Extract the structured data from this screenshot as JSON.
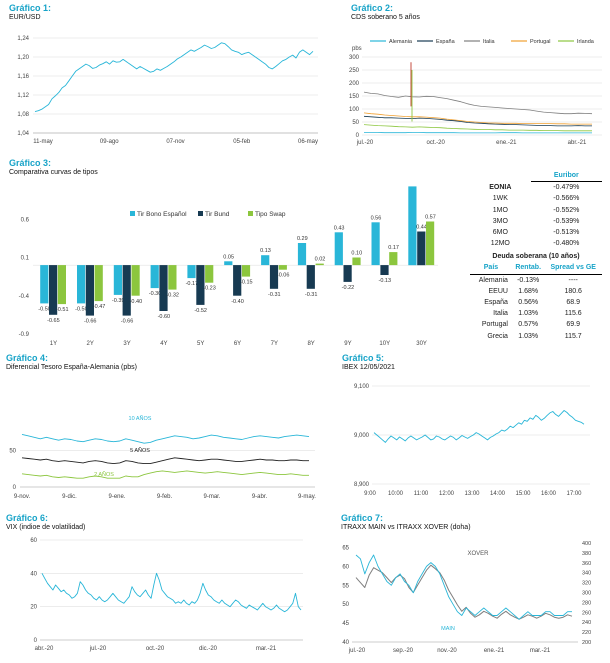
{
  "panels": {
    "g1": {
      "title": "Gráfico 1:",
      "subtitle": "EUR/USD"
    },
    "g2": {
      "title": "Gráfico 2:",
      "subtitle": "CDS soberano 5 años"
    },
    "g3": {
      "title": "Gráfico 3:",
      "subtitle": "Comparativa curvas de tipos"
    },
    "g4": {
      "title": "Gráfico 4:",
      "subtitle": "Diferencial Tesoro España-Alemania (pbs)"
    },
    "g5": {
      "title": "Gráfico 5:",
      "subtitle": "IBEX 12/05/2021"
    },
    "g6": {
      "title": "Gráfico 6:",
      "subtitle": "VIX (indioe de volatilidad)"
    },
    "g7": {
      "title": "Gráfico 7:",
      "subtitle": "ITRAXX MAIN vs ITRAXX XOVER (doha)"
    }
  },
  "colors": {
    "cyan": "#29b6d8",
    "navy": "#173a52",
    "green": "#8cc63e",
    "orange": "#f0a030",
    "gray": "#7f7f7f",
    "title": "#17a3c8",
    "grid": "#d9d9d9",
    "italy_red": "#c0392b"
  },
  "chart_data": [
    {
      "id": "g1",
      "type": "line",
      "x_ticks": [
        "11-may",
        "09-ago",
        "07-nov",
        "05-feb",
        "06-may"
      ],
      "y_ticks": [
        "1,04",
        "1,08",
        "1,12",
        "1,16",
        "1,20",
        "1,24"
      ],
      "ylim": [
        1.04,
        1.24
      ],
      "series": [
        {
          "values": [
            1.085,
            1.087,
            1.09,
            1.095,
            1.1,
            1.112,
            1.118,
            1.125,
            1.135,
            1.14,
            1.15,
            1.16,
            1.17,
            1.175,
            1.18,
            1.185,
            1.182,
            1.176,
            1.178,
            1.183,
            1.186,
            1.19,
            1.185,
            1.192,
            1.189,
            1.19,
            1.195,
            1.19,
            1.185,
            1.18,
            1.175,
            1.18,
            1.176,
            1.172,
            1.168,
            1.17,
            1.175,
            1.172,
            1.176,
            1.18,
            1.185,
            1.19,
            1.196,
            1.2,
            1.205,
            1.21,
            1.215,
            1.212,
            1.216,
            1.22,
            1.225,
            1.222,
            1.218,
            1.22,
            1.225,
            1.23,
            1.228,
            1.222,
            1.215,
            1.212,
            1.21,
            1.205,
            1.208,
            1.21,
            1.205,
            1.2,
            1.195,
            1.19,
            1.185,
            1.178,
            1.175,
            1.18,
            1.186,
            1.192,
            1.195,
            1.2,
            1.204,
            1.198,
            1.21,
            1.215,
            1.21,
            1.205,
            1.212
          ]
        }
      ]
    },
    {
      "id": "g2",
      "type": "line",
      "y_label": "pbs",
      "y_ticks": [
        "0",
        "50",
        "100",
        "150",
        "200",
        "250",
        "300"
      ],
      "ylim": [
        0,
        300
      ],
      "x_ticks": [
        "jul.-20",
        "oct.-20",
        "ene.-21",
        "abr.-21"
      ],
      "legend": [
        "Alemania",
        "España",
        "Italia",
        "Portugal",
        "Irlanda"
      ],
      "series": [
        {
          "name": "Alemania",
          "values": [
            10,
            10,
            10,
            9,
            9,
            9,
            9,
            10,
            10,
            9,
            9,
            9,
            9,
            9,
            8,
            8,
            8,
            8,
            8,
            8,
            9,
            9,
            9,
            8,
            8,
            8,
            8,
            8,
            8,
            8,
            8,
            8,
            8,
            8
          ]
        },
        {
          "name": "España",
          "values": [
            72,
            70,
            68,
            66,
            66,
            65,
            64,
            63,
            65,
            64,
            62,
            60,
            57,
            55,
            52,
            48,
            46,
            45,
            43,
            42,
            41,
            40,
            40,
            39,
            38,
            37,
            37,
            36,
            35,
            35,
            35,
            36,
            35,
            35
          ]
        },
        {
          "name": "Italia",
          "values": [
            165,
            160,
            158,
            152,
            148,
            145,
            150,
            147,
            146,
            149,
            148,
            144,
            140,
            134,
            128,
            120,
            114,
            110,
            108,
            106,
            104,
            102,
            100,
            98,
            96,
            92,
            88,
            86,
            84,
            82,
            82,
            84,
            83,
            82
          ]
        },
        {
          "name": "Portugal",
          "values": [
            85,
            82,
            80,
            77,
            75,
            73,
            71,
            70,
            70,
            69,
            67,
            65,
            61,
            58,
            55,
            52,
            50,
            48,
            46,
            46,
            45,
            45,
            45,
            44,
            44,
            44,
            44,
            44,
            43,
            43,
            42,
            42,
            42,
            42
          ]
        },
        {
          "name": "Irlanda",
          "values": [
            40,
            38,
            36,
            35,
            34,
            32,
            31,
            30,
            31,
            30,
            29,
            28,
            26,
            25,
            24,
            23,
            22,
            21,
            21,
            20,
            20,
            19,
            19,
            19,
            18,
            18,
            17,
            17,
            17,
            16,
            16,
            16,
            16,
            16
          ]
        }
      ]
    },
    {
      "id": "g3",
      "type": "bar",
      "categories": [
        "1Y",
        "2Y",
        "3Y",
        "4Y",
        "5Y",
        "6Y",
        "7Y",
        "8Y",
        "9Y",
        "10Y",
        "30Y"
      ],
      "y_ticks": [
        "-0.9",
        "-0.4",
        "0.1",
        "0.6"
      ],
      "ylim": [
        -0.9,
        1.1
      ],
      "series": [
        {
          "name": "Tir Bono Español",
          "values": [
            -0.5,
            -0.5,
            -0.39,
            -0.3,
            -0.17,
            0.05,
            0.13,
            0.29,
            0.43,
            0.56,
            1.03
          ],
          "labels": [
            "-0.50",
            "-0.50",
            "-0.39",
            "-0.30",
            "-0.17",
            "0.05",
            "0.13",
            "0.29",
            "0.43",
            "0.56",
            ""
          ]
        },
        {
          "name": "Tir Bund",
          "values": [
            -0.65,
            -0.66,
            -0.66,
            -0.6,
            -0.52,
            -0.4,
            -0.31,
            -0.31,
            -0.22,
            -0.13,
            0.44
          ],
          "labels": [
            "-0.65",
            "-0.66",
            "-0.66",
            "-0.60",
            "-0.52",
            "-0.40",
            "-0.31",
            "-0.31",
            "-0.22",
            "-0.13",
            "0.44"
          ]
        },
        {
          "name": "Tipo Swap",
          "values": [
            -0.51,
            -0.47,
            -0.4,
            -0.32,
            -0.23,
            -0.15,
            -0.06,
            0.02,
            0.1,
            0.17,
            0.57
          ],
          "labels": [
            "-0.51",
            "-0.47",
            "-0.40",
            "-0.32",
            "-0.23",
            "-0.15",
            "-0.06",
            "0.02",
            "0.10",
            "0.17",
            "0.57"
          ]
        }
      ]
    },
    {
      "id": "g4",
      "type": "line",
      "y_ticks": [
        "0",
        "50"
      ],
      "ylim": [
        0,
        130
      ],
      "x_ticks": [
        "9-nov.",
        "9-dic.",
        "9-ene.",
        "9-feb.",
        "9-mar.",
        "9-abr.",
        "9-may."
      ],
      "series": [
        {
          "name": "10 AÑOS",
          "values": [
            72,
            70,
            68,
            66,
            68,
            66,
            64,
            66,
            65,
            63,
            62,
            64,
            66,
            65,
            63,
            62,
            63,
            66,
            64,
            62,
            60,
            61,
            64,
            66,
            68,
            70,
            69,
            68,
            66,
            67,
            69,
            71,
            70,
            68,
            67,
            66,
            65,
            67,
            69,
            70,
            69,
            68,
            67,
            69,
            70,
            71,
            70,
            69
          ]
        },
        {
          "name": "5 AÑOS",
          "values": [
            40,
            39,
            38,
            37,
            38,
            36,
            35,
            36,
            35,
            34,
            33,
            35,
            36,
            35,
            33,
            32,
            33,
            36,
            35,
            33,
            32,
            32,
            34,
            36,
            38,
            40,
            39,
            38,
            37,
            36,
            37,
            38,
            38,
            37,
            36,
            35,
            35,
            36,
            37,
            38,
            37,
            37,
            36,
            36,
            37,
            37,
            36,
            36
          ]
        },
        {
          "name": "2 AÑOS",
          "values": [
            18,
            17,
            16,
            15,
            16,
            14,
            13,
            14,
            13,
            12,
            12,
            14,
            15,
            14,
            12,
            12,
            12,
            15,
            14,
            14,
            17,
            19,
            21,
            22,
            21,
            20,
            21,
            22,
            21,
            20,
            19,
            20,
            21,
            20,
            19,
            18,
            17,
            18,
            19,
            20,
            19,
            18,
            17,
            17,
            18,
            17,
            16,
            16
          ]
        }
      ]
    },
    {
      "id": "g5",
      "type": "line",
      "y_ticks": [
        "8,900",
        "9,000",
        "9,100"
      ],
      "ylim": [
        8900,
        9100
      ],
      "x_ticks": [
        "9:00",
        "10:00",
        "11:00",
        "12:00",
        "13:00",
        "14:00",
        "15:00",
        "16:00",
        "17:00"
      ],
      "series": [
        {
          "values": [
            9005,
            9000,
            8995,
            8990,
            8985,
            8992,
            8998,
            8994,
            8990,
            8996,
            8992,
            8988,
            8994,
            8998,
            8994,
            8990,
            8993,
            8996,
            9000,
            8995,
            8990,
            8992,
            8998,
            8996,
            8992,
            8990,
            8994,
            8998,
            8995,
            8990,
            8994,
            8999,
            8996,
            8993,
            8997,
            9000,
            9005,
            9002,
            8998,
            8994,
            8990,
            8995,
            8998,
            9002,
            9005,
            9010,
            9008,
            9012,
            9018,
            9015,
            9020,
            9025,
            9022,
            9030,
            9028,
            9035,
            9032,
            9040,
            9036,
            9030,
            9034,
            9040,
            9045,
            9048,
            9042,
            9038,
            9044,
            9050,
            9046,
            9040,
            9036,
            9030,
            9028,
            9026,
            9022
          ]
        }
      ]
    },
    {
      "id": "g6",
      "type": "line",
      "y_ticks": [
        "0",
        "20",
        "40",
        "60"
      ],
      "ylim": [
        0,
        60
      ],
      "x_ticks": [
        "abr.-20",
        "jul.-20",
        "oct.-20",
        "dic.-20",
        "mar.-21"
      ],
      "series": [
        {
          "values": [
            40,
            37,
            34,
            32,
            30,
            33,
            31,
            29,
            30,
            28,
            27,
            25,
            26,
            28,
            35,
            33,
            30,
            28,
            27,
            25,
            24,
            26,
            24,
            23,
            24,
            26,
            28,
            26,
            24,
            23,
            22,
            24,
            26,
            32,
            29,
            27,
            26,
            28,
            30,
            27,
            25,
            33,
            40,
            36,
            30,
            28,
            26,
            25,
            24,
            22,
            23,
            22,
            24,
            22,
            21,
            23,
            22,
            24,
            28,
            34,
            30,
            27,
            26,
            24,
            23,
            22,
            24,
            22,
            21,
            20,
            22,
            24,
            23,
            21,
            20,
            19,
            21,
            20,
            19,
            18,
            20,
            22,
            20,
            19,
            18,
            19,
            21,
            19,
            18,
            17,
            18,
            20,
            22,
            28,
            20,
            18
          ]
        }
      ]
    },
    {
      "id": "g7",
      "type": "line",
      "y_left_ticks": [
        "40",
        "45",
        "50",
        "55",
        "60",
        "65"
      ],
      "y_right_ticks": [
        "200",
        "220",
        "240",
        "260",
        "280",
        "300",
        "320",
        "340",
        "360",
        "380",
        "400"
      ],
      "ylim_left": [
        40,
        67.5
      ],
      "ylim_right": [
        200,
        410
      ],
      "x_ticks": [
        "jul.-20",
        "sep.-20",
        "nov.-20",
        "ene.-21",
        "mar.-21"
      ],
      "series": [
        {
          "name": "XOVER",
          "values": [
            330,
            320,
            310,
            335,
            350,
            345,
            340,
            330,
            320,
            330,
            335,
            328,
            310,
            300,
            315,
            330,
            345,
            355,
            348,
            340,
            325,
            305,
            290,
            275,
            262,
            270,
            258,
            250,
            255,
            262,
            258,
            252,
            248,
            256,
            262,
            255,
            250,
            246,
            250,
            255,
            252,
            248,
            252,
            258,
            255,
            250,
            248,
            250,
            255,
            252
          ]
        },
        {
          "name": "MAIN",
          "values": [
            63,
            62,
            58,
            61,
            63,
            60,
            58,
            56,
            55,
            57,
            58,
            56,
            55,
            53,
            56,
            58,
            60,
            61,
            60,
            58,
            55,
            52,
            50,
            48,
            47,
            49,
            48,
            47,
            48,
            49,
            48,
            47,
            47,
            48,
            49,
            48,
            47,
            46,
            47,
            48,
            47,
            47,
            47,
            48,
            48,
            47,
            47,
            47,
            48,
            48
          ]
        }
      ]
    }
  ],
  "table": {
    "euribor_header": "Euribor",
    "euribor": [
      {
        "term": "EONIA",
        "value": "-0.479%"
      },
      {
        "term": "1WK",
        "value": "-0.566%"
      },
      {
        "term": "1MO",
        "value": "-0.552%"
      },
      {
        "term": "3MO",
        "value": "-0.539%"
      },
      {
        "term": "6MO",
        "value": "-0.513%"
      },
      {
        "term": "12MO",
        "value": "-0.480%"
      }
    ],
    "sov_header": "Deuda soberana (10 años)",
    "sov_cols": [
      "País",
      "Rentab.",
      "Spread vs GE"
    ],
    "sov": [
      {
        "country": "Alemania",
        "yield": "-0.13%",
        "spread": "----"
      },
      {
        "country": "EEUU",
        "yield": "1.68%",
        "spread": "180.6"
      },
      {
        "country": "España",
        "yield": "0.56%",
        "spread": "68.9"
      },
      {
        "country": "Italia",
        "yield": "1.03%",
        "spread": "115.6"
      },
      {
        "country": "Portugal",
        "yield": "0.57%",
        "spread": "69.9"
      },
      {
        "country": "Grecia",
        "yield": "1.03%",
        "spread": "115.7"
      }
    ]
  }
}
